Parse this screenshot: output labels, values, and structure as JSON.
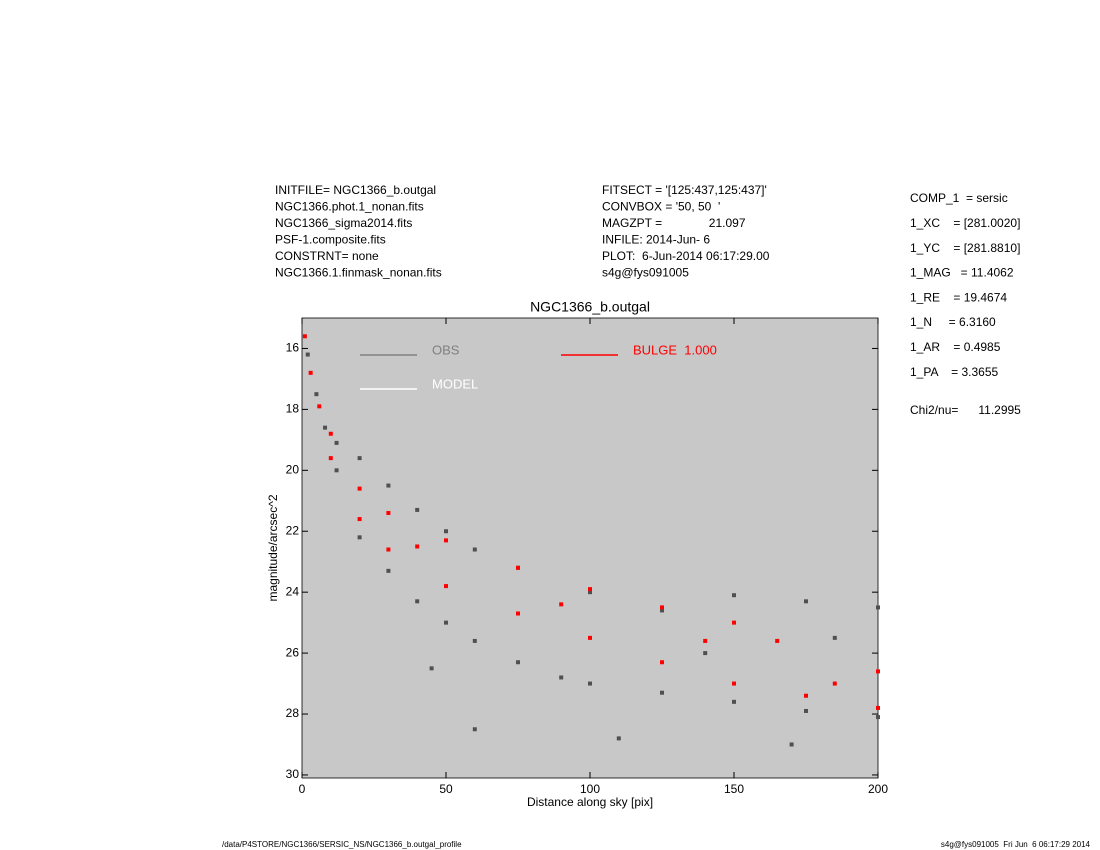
{
  "header": {
    "left": [
      "INITFILE= NGC1366_b.outgal",
      "NGC1366.phot.1_nonan.fits",
      "NGC1366_sigma2014.fits",
      "PSF-1.composite.fits",
      "CONSTRNT= none",
      "NGC1366.1.finmask_nonan.fits"
    ],
    "middle": [
      "FITSECT = '[125:437,125:437]'",
      "CONVBOX = '50, 50  '",
      "MAGZPT =              21.097",
      "INFILE: 2014-Jun- 6",
      "PLOT:  6-Jun-2014 06:17:29.00",
      "s4g@fys091005"
    ],
    "right": [
      "COMP_1  = sersic",
      "1_XC    = [281.0020]",
      "1_YC    = [281.8810]",
      "1_MAG   = 11.4062",
      "1_RE    = 19.4674",
      "1_N     = 6.3160",
      "1_AR    = 0.4985",
      "1_PA    = 3.3655"
    ],
    "chi": "Chi2/nu=      11.2995"
  },
  "footer": {
    "left": "/data/P4STORE/NGC1366/SERSIC_NS/NGC1366_b.outgal_profile",
    "right": "s4g@fys091005  Fri Jun  6 06:17:29 2014"
  },
  "chart_data": {
    "type": "scatter",
    "title": "NGC1366_b.outgal",
    "x_label": "Distance along sky [pix]",
    "y_label": "magnitude/arcsec^2",
    "xlim": [
      0,
      200
    ],
    "xticks": [
      0,
      50,
      100,
      150,
      200
    ],
    "ylim": [
      30.1,
      15
    ],
    "yticks": [
      16,
      18,
      20,
      22,
      24,
      26,
      28,
      30
    ],
    "background": "#c8c8c8",
    "series": [
      {
        "name": "OBS",
        "color": "#505050",
        "legend_color": "#808080",
        "x": [
          2,
          5,
          8,
          12,
          12,
          20,
          20,
          30,
          30,
          40,
          40,
          50,
          50,
          60,
          60,
          75,
          75,
          100,
          100,
          125,
          125,
          150,
          150,
          175,
          175,
          200,
          200,
          60,
          110,
          170,
          90,
          140,
          185,
          45
        ],
        "values": [
          16.2,
          17.5,
          18.6,
          19.1,
          20.0,
          19.6,
          22.2,
          20.5,
          23.3,
          21.3,
          24.3,
          22.0,
          25.0,
          22.6,
          25.6,
          23.2,
          26.3,
          24.0,
          27.0,
          24.6,
          27.3,
          24.1,
          27.6,
          24.3,
          27.9,
          24.5,
          28.1,
          28.5,
          28.8,
          29.0,
          26.8,
          26.0,
          25.5,
          26.5
        ]
      },
      {
        "name": "MODEL",
        "color": "#ffffff",
        "legend_color": "#ffffff",
        "x": [],
        "values": []
      },
      {
        "name": "BULGE  1.000",
        "color": "#ff0000",
        "legend_color": "#ff0000",
        "x": [
          1,
          3,
          6,
          10,
          10,
          20,
          20,
          30,
          30,
          50,
          50,
          75,
          75,
          100,
          100,
          125,
          125,
          150,
          150,
          165,
          175,
          200,
          200,
          40,
          90,
          140,
          185
        ],
        "values": [
          15.6,
          16.8,
          17.9,
          18.8,
          19.6,
          20.6,
          21.6,
          21.4,
          22.6,
          22.3,
          23.8,
          23.2,
          24.7,
          23.9,
          25.5,
          24.5,
          26.3,
          25.0,
          27.0,
          25.6,
          27.4,
          26.6,
          27.8,
          22.5,
          24.4,
          25.6,
          27.0
        ]
      }
    ]
  }
}
